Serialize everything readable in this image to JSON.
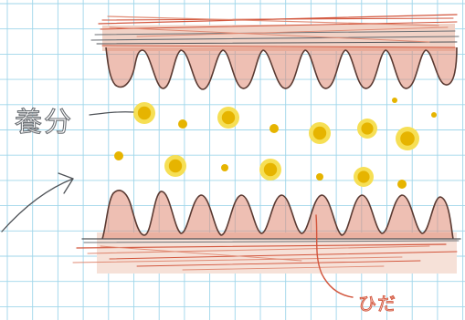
{
  "labels": {
    "nutrient": "養分",
    "fold": "ひだ"
  },
  "colors": {
    "paper": "#ffffff",
    "grid": "#9fd6ea",
    "tissue_fill": "#e08b75",
    "tissue_outline": "#5a3a32",
    "fold_pointer": "#d2553c",
    "nutrient_core": "#e6b400",
    "nutrient_halo": "#f6df55",
    "pencil": "#6b6f74"
  }
}
